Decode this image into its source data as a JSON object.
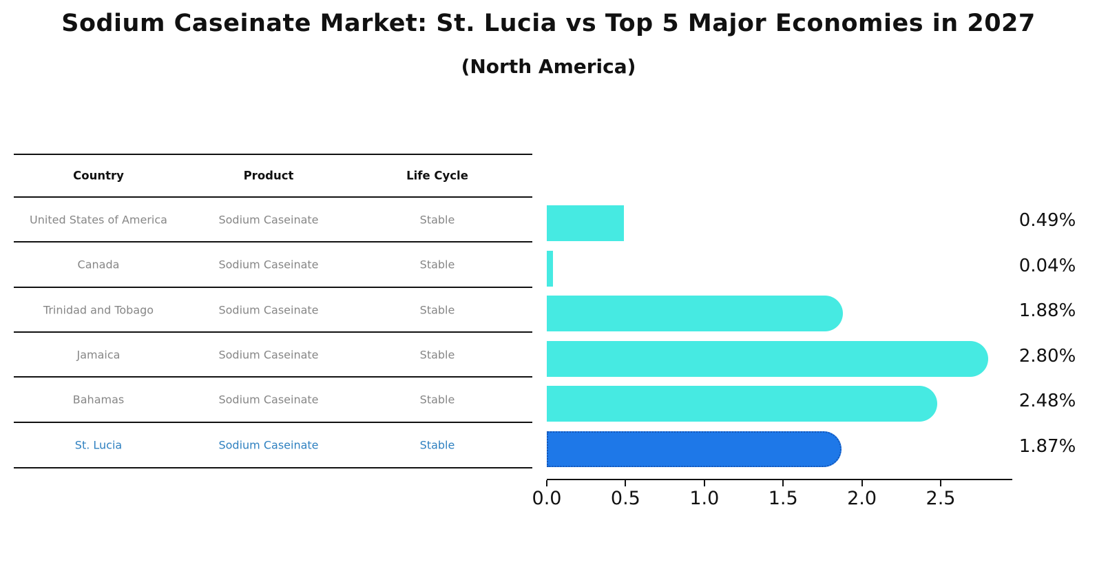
{
  "title": "Sodium Caseinate Market: St. Lucia vs Top 5 Major Economies in 2027",
  "subtitle": "(North America)",
  "table": {
    "headers": {
      "country": "Country",
      "product": "Product",
      "life_cycle": "Life Cycle"
    },
    "rows": [
      {
        "country": "United States of America",
        "product": "Sodium Caseinate",
        "life_cycle": "Stable"
      },
      {
        "country": "Canada",
        "product": "Sodium Caseinate",
        "life_cycle": "Stable"
      },
      {
        "country": "Trinidad and Tobago",
        "product": "Sodium Caseinate",
        "life_cycle": "Stable"
      },
      {
        "country": "Jamaica",
        "product": "Sodium Caseinate",
        "life_cycle": "Stable"
      },
      {
        "country": "Bahamas",
        "product": "Sodium Caseinate",
        "life_cycle": "Stable"
      },
      {
        "country": "St. Lucia",
        "product": "Sodium Caseinate",
        "life_cycle": "Stable"
      }
    ],
    "highlight_row_index": 5
  },
  "chart_data": {
    "type": "bar",
    "orientation": "horizontal",
    "title": "Sodium Caseinate Market: St. Lucia vs Top 5 Major Economies in 2027",
    "subtitle": "(North America)",
    "categories": [
      "United States of America",
      "Canada",
      "Trinidad and Tobago",
      "Jamaica",
      "Bahamas",
      "St. Lucia"
    ],
    "values": [
      0.49,
      0.04,
      1.88,
      2.8,
      2.48,
      1.87
    ],
    "value_labels": [
      "0.49%",
      "0.04%",
      "1.88%",
      "2.80%",
      "2.48%",
      "1.87%"
    ],
    "highlight_index": 5,
    "xlabel": "",
    "ylabel": "",
    "xticks": [
      "0.0",
      "0.5",
      "1.0",
      "1.5",
      "2.0",
      "2.5"
    ],
    "xtick_values": [
      0.0,
      0.5,
      1.0,
      1.5,
      2.0,
      2.5
    ],
    "xlim": [
      0,
      2.95
    ],
    "grid": false,
    "legend": false,
    "bar_color": "#46eae2",
    "highlight_bar_color": "#1e78e8",
    "highlight_bar_border_color": "#1456b8",
    "highlight_text_color": "#2e80c0",
    "table_text_color": "#868686"
  }
}
